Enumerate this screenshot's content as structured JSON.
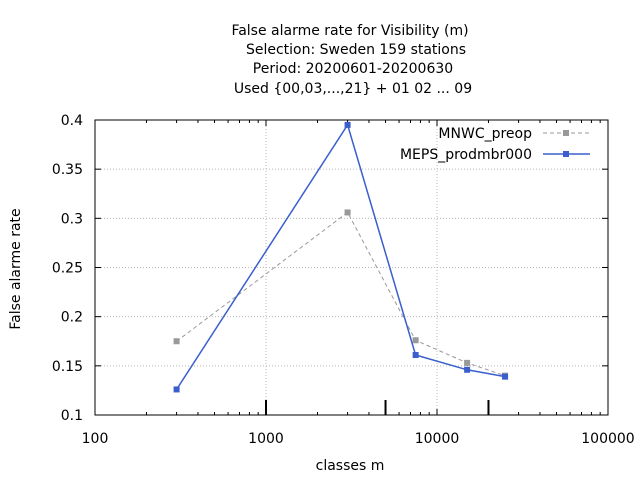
{
  "chart_data": {
    "type": "line",
    "title_lines": [
      "False alarme rate  for Visibility (m)",
      "Selection: Sweden    159 stations",
      "Period: 20200601-20200630",
      "Used {00,03,...,21} + 01 02 ... 09"
    ],
    "xlabel": "classes m",
    "ylabel": "False alarme rate",
    "x_scale": "log",
    "xlim": [
      100,
      100000
    ],
    "ylim": [
      0.1,
      0.4
    ],
    "x_ticks": [
      100,
      1000,
      10000,
      100000
    ],
    "x_tick_labels": [
      "100",
      "1000",
      "10000",
      "100000"
    ],
    "y_ticks": [
      0.1,
      0.15,
      0.2,
      0.25,
      0.3,
      0.35,
      0.4
    ],
    "y_tick_labels": [
      "0.1",
      "0.15",
      "0.2",
      "0.25",
      "0.3",
      "0.35",
      "0.4"
    ],
    "class_markers_x": [
      1000,
      5000,
      20000
    ],
    "grid": true,
    "legend_position": "top-right",
    "series": [
      {
        "name": "MNWC_preop",
        "color": "#999999",
        "dashed": true,
        "x": [
          300,
          3000,
          7500,
          15000,
          25000
        ],
        "values": [
          0.175,
          0.306,
          0.176,
          0.153,
          0.14
        ]
      },
      {
        "name": "MEPS_prodmbr000",
        "color": "#3a5fcd",
        "dashed": false,
        "x": [
          300,
          3000,
          7500,
          15000,
          25000
        ],
        "values": [
          0.126,
          0.395,
          0.161,
          0.146,
          0.139
        ]
      }
    ]
  }
}
